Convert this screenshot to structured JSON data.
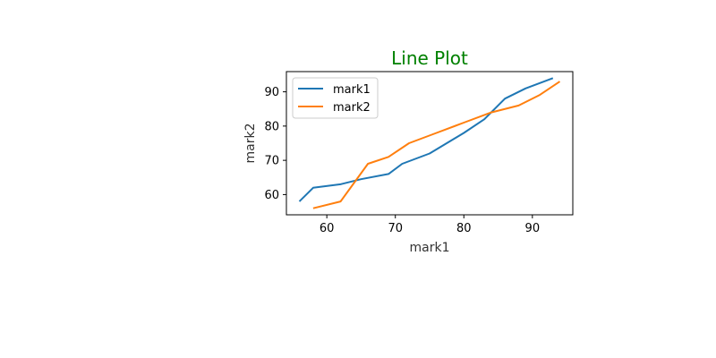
{
  "chart_data": {
    "type": "line",
    "title": "Line Plot",
    "title_color": "#008000",
    "xlabel": "mark1",
    "ylabel": "mark2",
    "xlim": [
      54.1,
      95.9
    ],
    "ylim": [
      54.1,
      95.9
    ],
    "xticks": [
      60,
      70,
      80,
      90
    ],
    "yticks": [
      60,
      70,
      80,
      90
    ],
    "legend_position": "upper-left",
    "grid": false,
    "series": [
      {
        "name": "mark1",
        "color": "#1f77b4",
        "x": [
          56,
          58,
          62,
          65,
          69,
          71,
          75,
          80,
          83,
          86,
          89,
          93
        ],
        "y": [
          58,
          62,
          63,
          64.5,
          66,
          69,
          72,
          78,
          82,
          88,
          91,
          94
        ]
      },
      {
        "name": "mark2",
        "color": "#ff7f0e",
        "x": [
          58,
          62,
          66,
          69,
          72,
          76,
          80,
          84,
          88,
          91,
          94
        ],
        "y": [
          56,
          58,
          69,
          71,
          75,
          78,
          81,
          84,
          86,
          89,
          93
        ]
      }
    ]
  }
}
